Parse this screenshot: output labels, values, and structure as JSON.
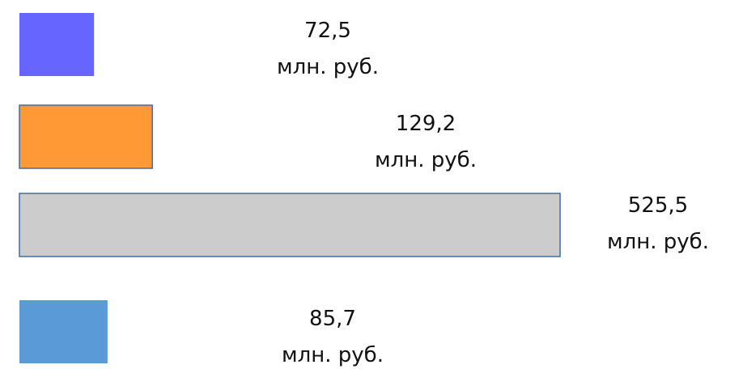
{
  "chart_data": {
    "type": "bar",
    "orientation": "horizontal",
    "title": "",
    "xlabel": "",
    "ylabel": "",
    "categories": [],
    "unit_label": "млн. руб.",
    "grid": false,
    "legend": "none",
    "bars": [
      {
        "value": 72.5,
        "value_text": "72,5",
        "unit_text": "млн. руб.",
        "color": "#6666ff",
        "outline": "none"
      },
      {
        "value": 129.2,
        "value_text": "129,2",
        "unit_text": "млн. руб.",
        "color": "#ff9933",
        "outline": "#3d6fa8"
      },
      {
        "value": 525.5,
        "value_text": "525,5",
        "unit_text": "млн. руб.",
        "color": "#cccccc",
        "outline": "#3d6fa8"
      },
      {
        "value": 85.7,
        "value_text": "85,7",
        "unit_text": "млн. руб.",
        "color": "#5b9bd5",
        "outline": "none"
      }
    ]
  }
}
